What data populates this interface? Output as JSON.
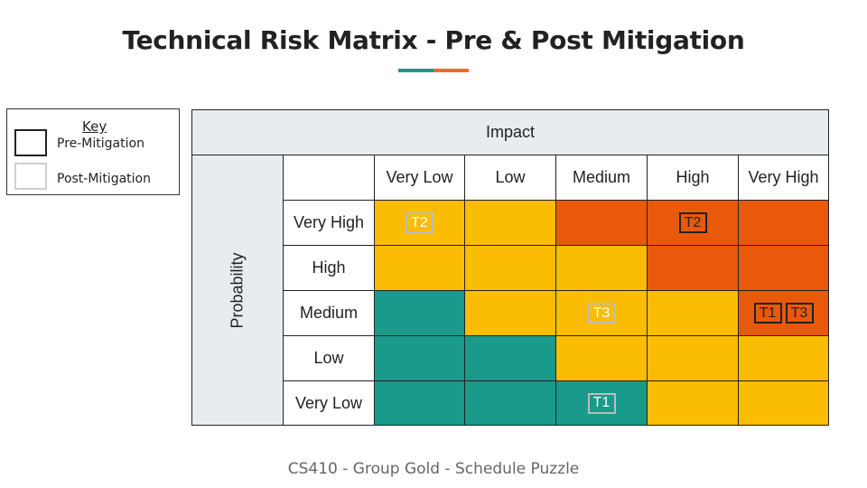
{
  "title": "Technical Risk Matrix - Pre & Post Mitigation",
  "accent_colors": [
    "#1a9a8a",
    "#ee6a2a"
  ],
  "key": {
    "title": "Key",
    "pre_label": "Pre-Mitigation",
    "post_label": "Post-Mitigation"
  },
  "matrix": {
    "impact_header": "Impact",
    "probability_header": "Probability",
    "impact_levels": [
      "Very Low",
      "Low",
      "Medium",
      "High",
      "Very High"
    ],
    "probability_levels": [
      "Very High",
      "High",
      "Medium",
      "Low",
      "Very Low"
    ],
    "colors": {
      "green": "#1a9a8a",
      "yellow": "#fbbc04",
      "orange": "#e8590c",
      "header": "#e8ecee"
    },
    "rows": [
      {
        "cells": [
          {
            "color": "yellow",
            "tags": [
              {
                "label": "T2",
                "type": "post"
              }
            ]
          },
          {
            "color": "yellow",
            "tags": []
          },
          {
            "color": "orange",
            "tags": []
          },
          {
            "color": "orange",
            "tags": [
              {
                "label": "T2",
                "type": "pre"
              }
            ]
          },
          {
            "color": "orange",
            "tags": []
          }
        ]
      },
      {
        "cells": [
          {
            "color": "yellow",
            "tags": []
          },
          {
            "color": "yellow",
            "tags": []
          },
          {
            "color": "yellow",
            "tags": []
          },
          {
            "color": "orange",
            "tags": []
          },
          {
            "color": "orange",
            "tags": []
          }
        ]
      },
      {
        "cells": [
          {
            "color": "green",
            "tags": []
          },
          {
            "color": "yellow",
            "tags": []
          },
          {
            "color": "yellow",
            "tags": [
              {
                "label": "T3",
                "type": "post"
              }
            ]
          },
          {
            "color": "yellow",
            "tags": []
          },
          {
            "color": "orange",
            "tags": [
              {
                "label": "T1",
                "type": "pre"
              },
              {
                "label": "T3",
                "type": "pre"
              }
            ]
          }
        ]
      },
      {
        "cells": [
          {
            "color": "green",
            "tags": []
          },
          {
            "color": "green",
            "tags": []
          },
          {
            "color": "yellow",
            "tags": []
          },
          {
            "color": "yellow",
            "tags": []
          },
          {
            "color": "yellow",
            "tags": []
          }
        ]
      },
      {
        "cells": [
          {
            "color": "green",
            "tags": []
          },
          {
            "color": "green",
            "tags": []
          },
          {
            "color": "green",
            "tags": [
              {
                "label": "T1",
                "type": "post"
              }
            ]
          },
          {
            "color": "yellow",
            "tags": []
          },
          {
            "color": "yellow",
            "tags": []
          }
        ]
      }
    ]
  },
  "footer": "CS410 - Group Gold - Schedule Puzzle"
}
